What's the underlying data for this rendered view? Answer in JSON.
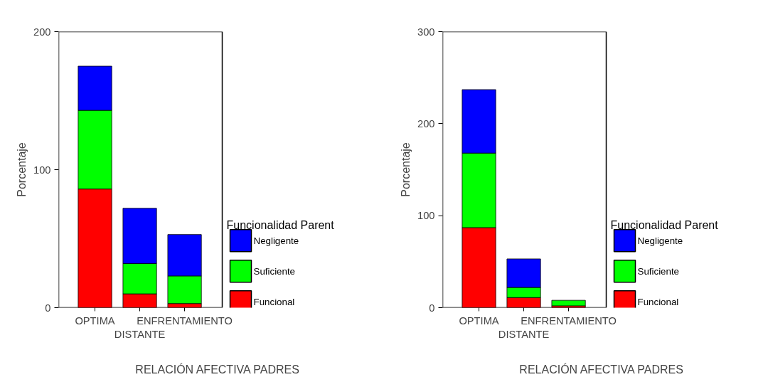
{
  "chart_data": [
    {
      "type": "bar",
      "stacked": true,
      "categories": [
        "OPTIMA",
        "DISTANTE",
        "ENFRENTAMIENTO"
      ],
      "xlabel": "RELACIÓN AFECTIVA PADRES",
      "ylabel": "Porcentaje",
      "legend_title": "Funcionalidad Parent",
      "legend": "right",
      "grid": false,
      "ylim": [
        0,
        200
      ],
      "yticks": [
        0,
        100,
        200
      ],
      "series": [
        {
          "name": "Funcional",
          "color": "#ff0000",
          "values": [
            86,
            10,
            3
          ]
        },
        {
          "name": "Suficiente",
          "color": "#00ff00",
          "values": [
            57,
            22,
            20
          ]
        },
        {
          "name": "Negligente",
          "color": "#0000ff",
          "values": [
            32,
            40,
            30
          ]
        }
      ]
    },
    {
      "type": "bar",
      "stacked": true,
      "categories": [
        "OPTIMA",
        "DISTANTE",
        "ENFRENTAMIENTO"
      ],
      "xlabel": "RELACIÓN AFECTIVA PADRES",
      "ylabel": "Porcentaje",
      "legend_title": "Funcionalidad Parent",
      "legend": "right",
      "grid": false,
      "ylim": [
        0,
        300
      ],
      "yticks": [
        0,
        100,
        200,
        300
      ],
      "series": [
        {
          "name": "Funcional",
          "color": "#ff0000",
          "values": [
            87,
            11,
            2
          ]
        },
        {
          "name": "Suficiente",
          "color": "#00ff00",
          "values": [
            81,
            11,
            6
          ]
        },
        {
          "name": "Negligente",
          "color": "#0000ff",
          "values": [
            69,
            31,
            0
          ]
        }
      ]
    }
  ]
}
